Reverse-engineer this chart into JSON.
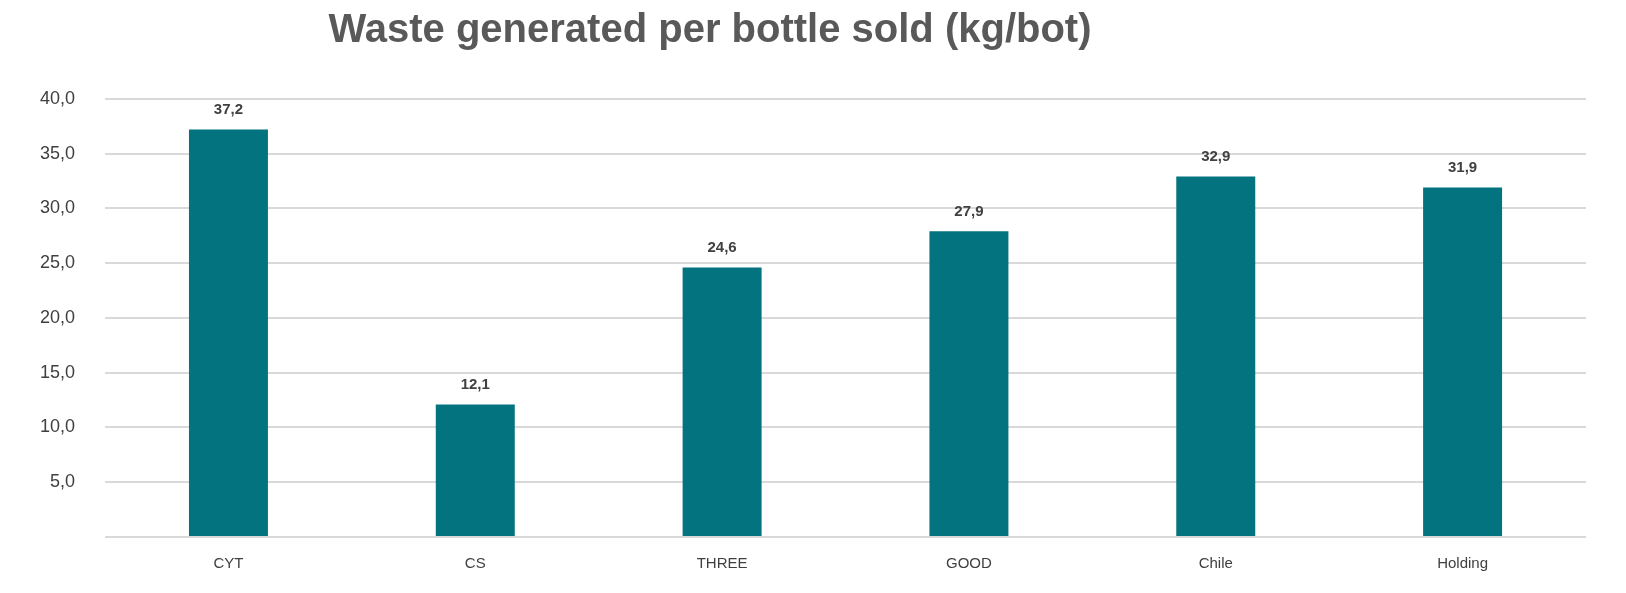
{
  "chart_data": {
    "type": "bar",
    "title": "Waste generated per bottle sold (kg/bot)",
    "categories": [
      "CYT",
      "CS",
      "THREE",
      "GOOD",
      "Chile",
      "Holding"
    ],
    "values": [
      37.2,
      12.1,
      24.6,
      27.9,
      32.9,
      31.9
    ],
    "value_labels": [
      "37,2",
      "12,1",
      "24,6",
      "27,9",
      "32,9",
      "31,9"
    ],
    "color": "#037380",
    "ylim": [
      0,
      40
    ],
    "yticks": [
      {
        "value": 0,
        "label": null
      },
      {
        "value": 5,
        "label": "5,0"
      },
      {
        "value": 10,
        "label": "10,0"
      },
      {
        "value": 15,
        "label": "15,0"
      },
      {
        "value": 20,
        "label": "20,0"
      },
      {
        "value": 25,
        "label": "25,0"
      },
      {
        "value": 30,
        "label": "30,0"
      },
      {
        "value": 35,
        "label": "35,0"
      },
      {
        "value": 40,
        "label": "40,0"
      }
    ],
    "grid": "y",
    "legend": false
  }
}
